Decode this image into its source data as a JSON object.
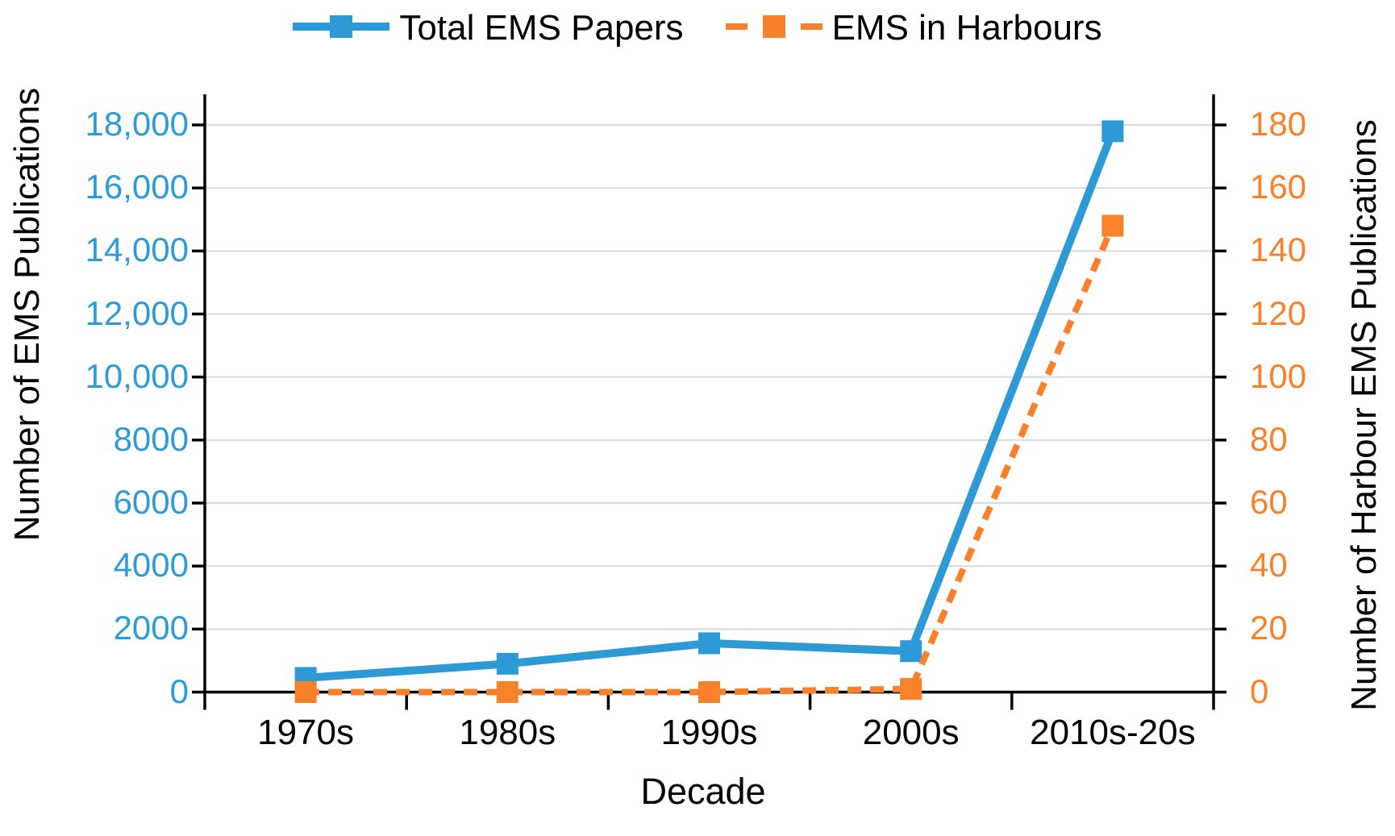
{
  "chart_data": {
    "type": "line",
    "title": "",
    "categories": [
      "1970s",
      "1980s",
      "1990s",
      "2000s",
      "2010s-20s"
    ],
    "series": [
      {
        "name": "Total EMS Papers",
        "axis": "left",
        "color": "#2D9AD5",
        "line_style": "solid",
        "marker": "square",
        "values": [
          450,
          900,
          1550,
          1300,
          17800
        ]
      },
      {
        "name": "EMS in Harbours",
        "axis": "right",
        "color": "#F8812C",
        "line_style": "dashed",
        "marker": "square",
        "values": [
          0,
          0,
          0,
          1,
          148
        ]
      }
    ],
    "xlabel": "Decade",
    "left_axis": {
      "label": "Number of EMS Publications",
      "tick_labels": [
        "0",
        "2000",
        "4000",
        "6000",
        "8000",
        "10,000",
        "12,000",
        "14,000",
        "16,000",
        "18,000"
      ],
      "tick_values": [
        0,
        2000,
        4000,
        6000,
        8000,
        10000,
        12000,
        14000,
        16000,
        18000
      ],
      "range": [
        0,
        18000
      ],
      "color": "#2E9BD8"
    },
    "right_axis": {
      "label": "Number of Harbour EMS Publications",
      "tick_labels": [
        "0",
        "20",
        "40",
        "60",
        "80",
        "100",
        "120",
        "140",
        "160",
        "180"
      ],
      "tick_values": [
        0,
        20,
        40,
        60,
        80,
        100,
        120,
        140,
        160,
        180
      ],
      "range": [
        0,
        180
      ],
      "color": "#F8822C"
    },
    "grid": true,
    "legend_position": "top",
    "gridline_color": "#D9D9D9",
    "axis_color": "#000000"
  }
}
